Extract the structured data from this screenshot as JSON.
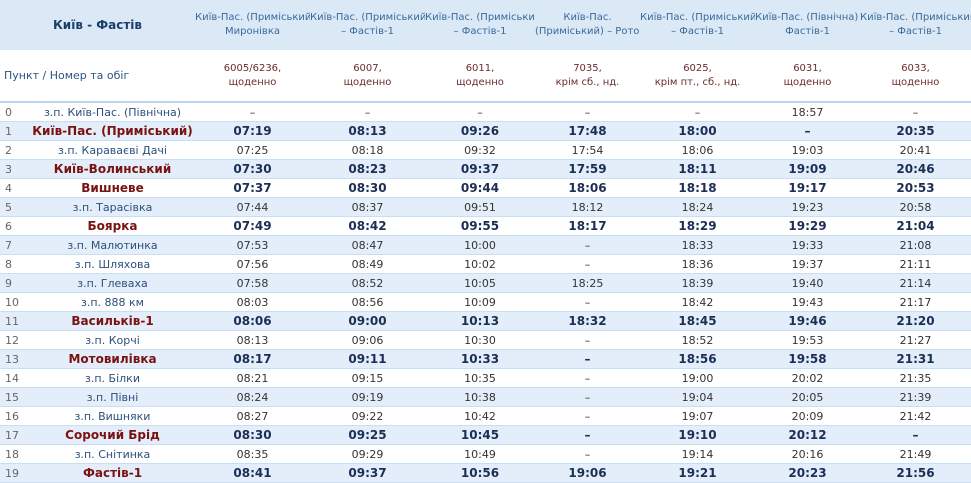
{
  "header": {
    "title": "Київ - Фастів",
    "label": "Пункт / Номер та обіг"
  },
  "routes": [
    {
      "route": [
        "Київ-Пас. (Приміський) –",
        "Миронівка"
      ],
      "train": [
        "6005/6236,",
        "щоденно"
      ]
    },
    {
      "route": [
        "Київ-Пас. (Приміський)",
        "– Фастів-1"
      ],
      "train": [
        "6007,",
        "щоденно"
      ]
    },
    {
      "route": [
        "Київ-Пас. (Приміський)",
        "– Фастів-1"
      ],
      "train": [
        "6011,",
        "щоденно"
      ]
    },
    {
      "route": [
        "Київ-Пас.",
        "(Приміський) – Роток"
      ],
      "train": [
        "7035,",
        "крім сб., нд."
      ]
    },
    {
      "route": [
        "Київ-Пас. (Приміський)",
        "– Фастів-1"
      ],
      "train": [
        "6025,",
        "крім пт., сб., нд."
      ]
    },
    {
      "route": [
        "Київ-Пас. (Північна) –",
        "Фастів-1"
      ],
      "train": [
        "6031,",
        "щоденно"
      ]
    },
    {
      "route": [
        "Київ-Пас. (Приміський)",
        "– Фастів-1"
      ],
      "train": [
        "6033,",
        "щоденно"
      ]
    }
  ],
  "rows": [
    {
      "index": 0,
      "station": "з.п. Київ-Пас. (Північна)",
      "major": false,
      "times": [
        "–",
        "–",
        "–",
        "–",
        "–",
        "18:57",
        "–"
      ]
    },
    {
      "index": 1,
      "station": "Київ-Пас. (Приміський)",
      "major": true,
      "times": [
        "07:19",
        "08:13",
        "09:26",
        "17:48",
        "18:00",
        "–",
        "20:35"
      ]
    },
    {
      "index": 2,
      "station": "з.п. Караваєві Дачі",
      "major": false,
      "times": [
        "07:25",
        "08:18",
        "09:32",
        "17:54",
        "18:06",
        "19:03",
        "20:41"
      ]
    },
    {
      "index": 3,
      "station": "Київ-Волинський",
      "major": true,
      "times": [
        "07:30",
        "08:23",
        "09:37",
        "17:59",
        "18:11",
        "19:09",
        "20:46"
      ]
    },
    {
      "index": 4,
      "station": "Вишневе",
      "major": true,
      "times": [
        "07:37",
        "08:30",
        "09:44",
        "18:06",
        "18:18",
        "19:17",
        "20:53"
      ]
    },
    {
      "index": 5,
      "station": "з.п. Тарасівка",
      "major": false,
      "times": [
        "07:44",
        "08:37",
        "09:51",
        "18:12",
        "18:24",
        "19:23",
        "20:58"
      ]
    },
    {
      "index": 6,
      "station": "Боярка",
      "major": true,
      "times": [
        "07:49",
        "08:42",
        "09:55",
        "18:17",
        "18:29",
        "19:29",
        "21:04"
      ]
    },
    {
      "index": 7,
      "station": "з.п. Малютинка",
      "major": false,
      "times": [
        "07:53",
        "08:47",
        "10:00",
        "–",
        "18:33",
        "19:33",
        "21:08"
      ]
    },
    {
      "index": 8,
      "station": "з.п. Шляхова",
      "major": false,
      "times": [
        "07:56",
        "08:49",
        "10:02",
        "–",
        "18:36",
        "19:37",
        "21:11"
      ]
    },
    {
      "index": 9,
      "station": "з.п. Глеваха",
      "major": false,
      "times": [
        "07:58",
        "08:52",
        "10:05",
        "18:25",
        "18:39",
        "19:40",
        "21:14"
      ]
    },
    {
      "index": 10,
      "station": "з.п. 888 км",
      "major": false,
      "times": [
        "08:03",
        "08:56",
        "10:09",
        "–",
        "18:42",
        "19:43",
        "21:17"
      ]
    },
    {
      "index": 11,
      "station": "Васильків-1",
      "major": true,
      "times": [
        "08:06",
        "09:00",
        "10:13",
        "18:32",
        "18:45",
        "19:46",
        "21:20"
      ]
    },
    {
      "index": 12,
      "station": "з.п. Корчі",
      "major": false,
      "times": [
        "08:13",
        "09:06",
        "10:30",
        "–",
        "18:52",
        "19:53",
        "21:27"
      ]
    },
    {
      "index": 13,
      "station": "Мотовилівка",
      "major": true,
      "times": [
        "08:17",
        "09:11",
        "10:33",
        "–",
        "18:56",
        "19:58",
        "21:31"
      ]
    },
    {
      "index": 14,
      "station": "з.п. Білки",
      "major": false,
      "times": [
        "08:21",
        "09:15",
        "10:35",
        "–",
        "19:00",
        "20:02",
        "21:35"
      ]
    },
    {
      "index": 15,
      "station": "з.п. Півні",
      "major": false,
      "times": [
        "08:24",
        "09:19",
        "10:38",
        "–",
        "19:04",
        "20:05",
        "21:39"
      ]
    },
    {
      "index": 16,
      "station": "з.п. Вишняки",
      "major": false,
      "times": [
        "08:27",
        "09:22",
        "10:42",
        "–",
        "19:07",
        "20:09",
        "21:42"
      ]
    },
    {
      "index": 17,
      "station": "Сорочий Брід",
      "major": true,
      "times": [
        "08:30",
        "09:25",
        "10:45",
        "–",
        "19:10",
        "20:12",
        "–"
      ]
    },
    {
      "index": 18,
      "station": "з.п. Снітинка",
      "major": false,
      "times": [
        "08:35",
        "09:29",
        "10:49",
        "–",
        "19:14",
        "20:16",
        "21:49"
      ]
    },
    {
      "index": 19,
      "station": "Фастів-1",
      "major": true,
      "times": [
        "08:41",
        "09:37",
        "10:56",
        "19:06",
        "19:21",
        "20:23",
        "21:56"
      ]
    }
  ]
}
